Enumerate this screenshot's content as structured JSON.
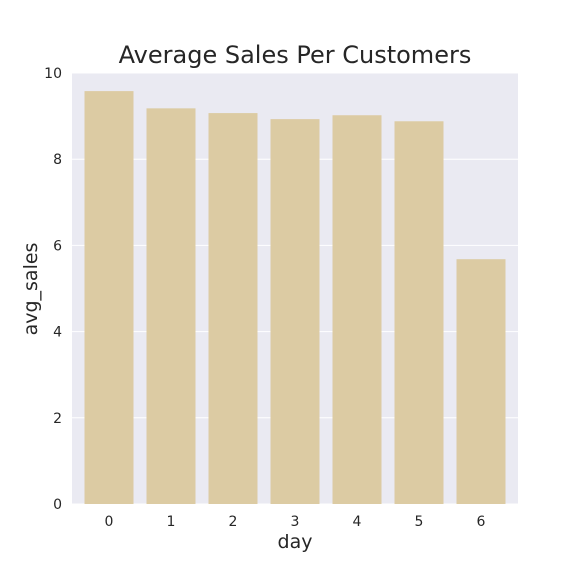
{
  "chart_data": {
    "type": "bar",
    "title": "Average Sales Per Customers",
    "xlabel": "day",
    "ylabel": "avg_sales",
    "categories": [
      "0",
      "1",
      "2",
      "3",
      "4",
      "5",
      "6"
    ],
    "values": [
      9.58,
      9.18,
      9.07,
      8.93,
      9.02,
      8.88,
      5.68
    ],
    "ylim": [
      0,
      10
    ],
    "yticks": [
      "0",
      "2",
      "4",
      "6",
      "8",
      "10"
    ],
    "grid": true,
    "bar_color": "#dccba3",
    "background_color": "#eaeaf2",
    "grid_color": "#ffffff"
  }
}
